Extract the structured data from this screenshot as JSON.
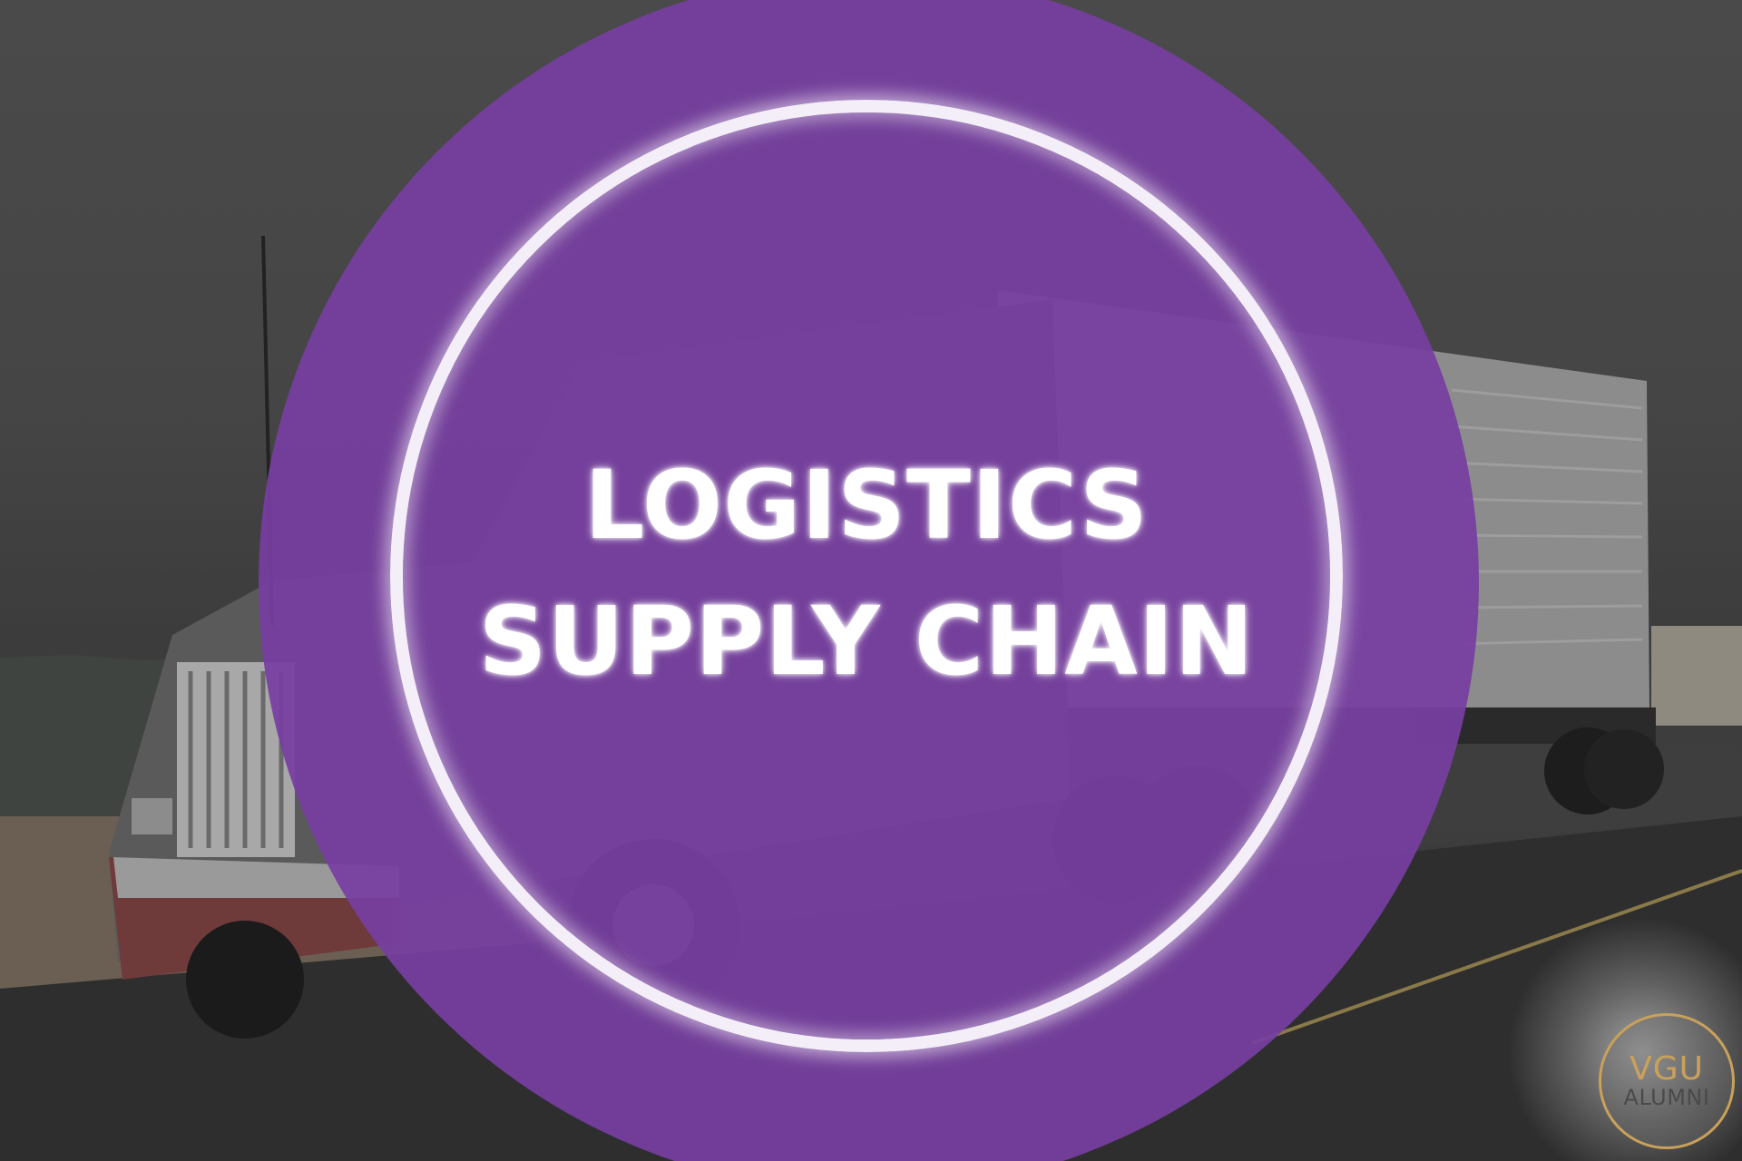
{
  "banner": {
    "title_line1": "LOGISTICS",
    "title_line2": "SUPPLY CHAIN"
  },
  "logo": {
    "line1": "VGU",
    "line2": "ALUMNI"
  },
  "background": {
    "subject": "truck-photo"
  },
  "colors": {
    "disc_purple": "#763ea0",
    "ring_white": "#f3eef7",
    "logo_gold": "#c9a15a",
    "text_white": "#ffffff"
  }
}
